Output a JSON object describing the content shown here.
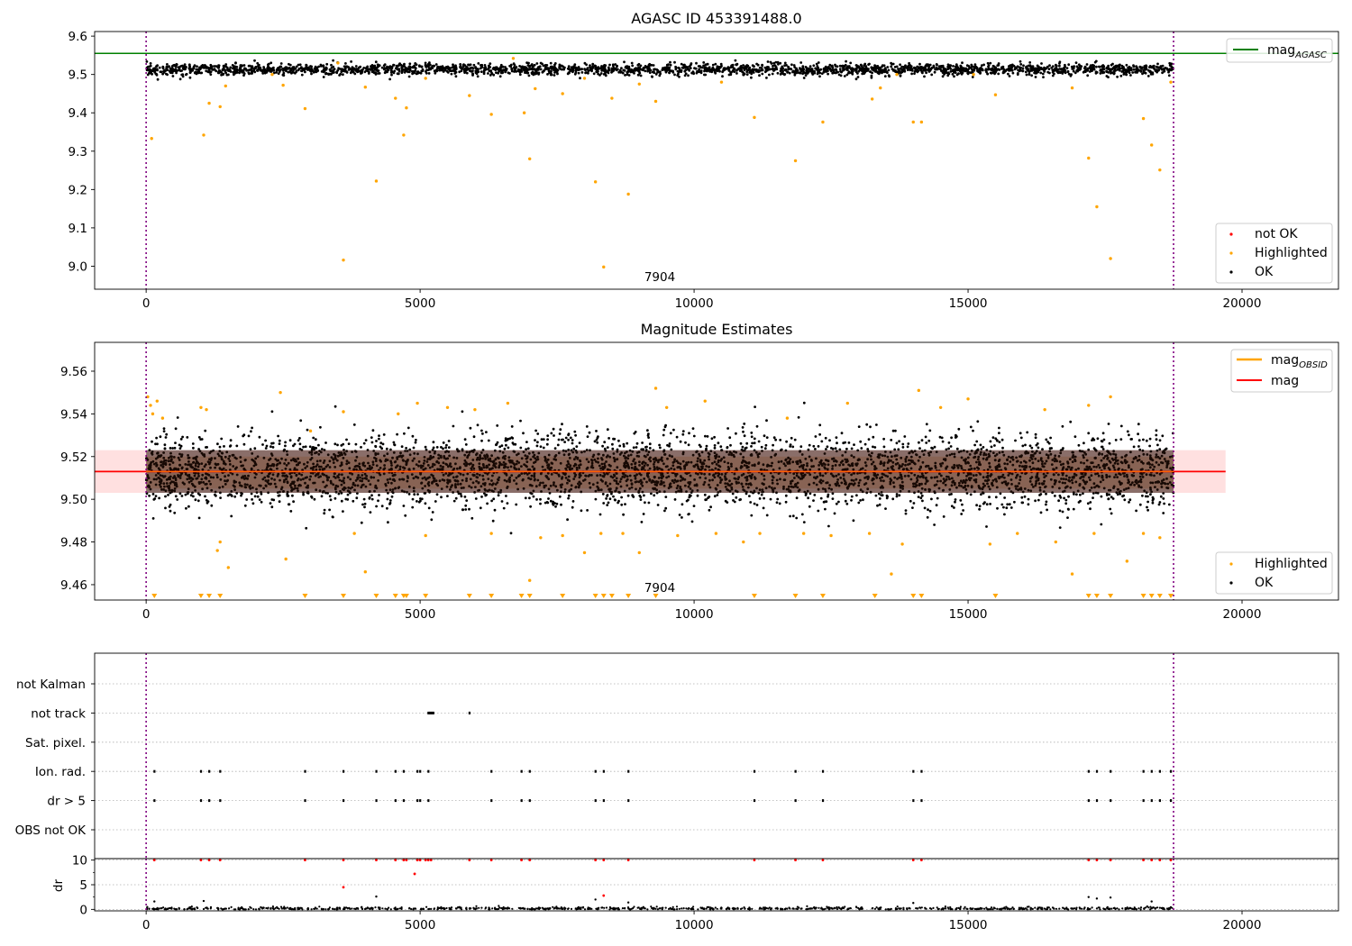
{
  "chart_data": [
    {
      "type": "scatter",
      "title": "AGASC ID 453391488.0",
      "xlim": [
        -940,
        21760
      ],
      "ylim": [
        8.94,
        9.612
      ],
      "xticks": [
        0,
        5000,
        10000,
        15000,
        20000
      ],
      "yticks": [
        9.0,
        9.1,
        9.2,
        9.3,
        9.4,
        9.5,
        9.6
      ],
      "annotation": "7904",
      "obs_bounds": [
        0,
        18750
      ],
      "reference_line": {
        "name": "mag_AGASC",
        "y": 9.555,
        "color": "#008000"
      },
      "series": [
        {
          "name": "not OK",
          "color": "#ff0000",
          "points": []
        },
        {
          "name": "Highlighted",
          "color": "#ffa500",
          "points": [
            [
              100,
              9.333
            ],
            [
              1050,
              9.342
            ],
            [
              1150,
              9.425
            ],
            [
              1350,
              9.416
            ],
            [
              1450,
              9.47
            ],
            [
              2300,
              9.5
            ],
            [
              2500,
              9.472
            ],
            [
              2900,
              9.411
            ],
            [
              3500,
              9.53
            ],
            [
              3600,
              9.016
            ],
            [
              4000,
              9.467
            ],
            [
              4200,
              9.222
            ],
            [
              4550,
              9.438
            ],
            [
              4700,
              9.342
            ],
            [
              4750,
              9.413
            ],
            [
              5100,
              9.49
            ],
            [
              5900,
              9.445
            ],
            [
              6300,
              9.396
            ],
            [
              6700,
              9.542
            ],
            [
              6900,
              9.4
            ],
            [
              7000,
              9.28
            ],
            [
              7100,
              9.463
            ],
            [
              7600,
              9.45
            ],
            [
              8000,
              9.49
            ],
            [
              8200,
              9.22
            ],
            [
              8350,
              8.998
            ],
            [
              8500,
              9.438
            ],
            [
              8800,
              9.188
            ],
            [
              9000,
              9.475
            ],
            [
              9300,
              9.43
            ],
            [
              10500,
              9.48
            ],
            [
              11100,
              9.388
            ],
            [
              11850,
              9.275
            ],
            [
              12350,
              9.376
            ],
            [
              13250,
              9.436
            ],
            [
              13400,
              9.465
            ],
            [
              13700,
              9.5
            ],
            [
              14000,
              9.376
            ],
            [
              14150,
              9.376
            ],
            [
              15100,
              9.5
            ],
            [
              15500,
              9.447
            ],
            [
              16900,
              9.465
            ],
            [
              17200,
              9.282
            ],
            [
              17350,
              9.155
            ],
            [
              17600,
              9.02
            ],
            [
              18200,
              9.385
            ],
            [
              18350,
              9.316
            ],
            [
              18500,
              9.251
            ],
            [
              18700,
              9.48
            ]
          ]
        },
        {
          "name": "OK",
          "color": "#000000",
          "points": []
        }
      ]
    },
    {
      "type": "scatter",
      "title": "Magnitude Estimates",
      "xlim": [
        -940,
        21760
      ],
      "ylim": [
        9.4528,
        9.5735
      ],
      "xticks": [
        0,
        5000,
        10000,
        15000,
        20000
      ],
      "yticks": [
        9.46,
        9.48,
        9.5,
        9.52,
        9.54,
        9.56
      ],
      "annotation": "7904",
      "obs_bounds": [
        0,
        18750
      ],
      "reference_lines": [
        {
          "name": "mag_OBSID",
          "y": 9.513,
          "color": "#ffa500"
        },
        {
          "name": "mag",
          "y": 9.513,
          "color": "#ff0000"
        }
      ],
      "mag_band": [
        9.503,
        9.523
      ],
      "series": [
        {
          "name": "Highlighted",
          "color": "#ffa500",
          "points": [
            [
              30,
              9.548
            ],
            [
              80,
              9.544
            ],
            [
              120,
              9.54
            ],
            [
              200,
              9.546
            ],
            [
              300,
              9.538
            ],
            [
              1000,
              9.543
            ],
            [
              1100,
              9.542
            ],
            [
              1350,
              9.48
            ],
            [
              1300,
              9.476
            ],
            [
              1500,
              9.468
            ],
            [
              2450,
              9.55
            ],
            [
              2550,
              9.472
            ],
            [
              3000,
              9.532
            ],
            [
              3600,
              9.541
            ],
            [
              3800,
              9.484
            ],
            [
              4000,
              9.466
            ],
            [
              4600,
              9.54
            ],
            [
              4950,
              9.545
            ],
            [
              5100,
              9.483
            ],
            [
              5500,
              9.543
            ],
            [
              6000,
              9.542
            ],
            [
              6300,
              9.484
            ],
            [
              6600,
              9.545
            ],
            [
              7000,
              9.462
            ],
            [
              7200,
              9.482
            ],
            [
              7600,
              9.483
            ],
            [
              8000,
              9.475
            ],
            [
              8300,
              9.484
            ],
            [
              8700,
              9.484
            ],
            [
              9000,
              9.475
            ],
            [
              9300,
              9.552
            ],
            [
              9500,
              9.543
            ],
            [
              9700,
              9.483
            ],
            [
              10200,
              9.546
            ],
            [
              10400,
              9.484
            ],
            [
              10900,
              9.48
            ],
            [
              11200,
              9.484
            ],
            [
              11700,
              9.538
            ],
            [
              12000,
              9.484
            ],
            [
              12500,
              9.483
            ],
            [
              12800,
              9.545
            ],
            [
              13200,
              9.484
            ],
            [
              13600,
              9.465
            ],
            [
              13800,
              9.479
            ],
            [
              14100,
              9.551
            ],
            [
              14500,
              9.543
            ],
            [
              15000,
              9.547
            ],
            [
              15400,
              9.479
            ],
            [
              15900,
              9.484
            ],
            [
              16400,
              9.542
            ],
            [
              16600,
              9.48
            ],
            [
              16900,
              9.465
            ],
            [
              17200,
              9.544
            ],
            [
              17300,
              9.484
            ],
            [
              17600,
              9.548
            ],
            [
              17900,
              9.471
            ],
            [
              18200,
              9.484
            ],
            [
              18500,
              9.482
            ]
          ]
        },
        {
          "name": "OK",
          "color": "#000000",
          "points": []
        }
      ],
      "below_range_markers": [
        150,
        1000,
        1150,
        1350,
        2900,
        3600,
        4200,
        4550,
        4700,
        4750,
        5100,
        5900,
        6300,
        6850,
        7000,
        7600,
        8200,
        8350,
        8500,
        8800,
        9300,
        11100,
        11850,
        12350,
        13300,
        14000,
        14150,
        15500,
        17200,
        17350,
        17600,
        18200,
        18350,
        18500,
        18700
      ]
    },
    {
      "type": "scatter",
      "title": "",
      "xlim": [
        -940,
        21760
      ],
      "xticks": [
        0,
        5000,
        10000,
        15000,
        20000
      ],
      "obs_bounds": [
        0,
        18750
      ],
      "flag_rows": [
        "not Kalman",
        "not track",
        "Sat. pixel.",
        "Ion. rad.",
        "dr > 5",
        "OBS not OK"
      ],
      "flag_events": {
        "not Kalman": [],
        "not track": [
          5150,
          5180,
          5210,
          5240,
          5900
        ],
        "Sat. pixel.": [],
        "Ion. rad.": [
          150,
          1000,
          1150,
          1350,
          2900,
          3600,
          4200,
          4550,
          4700,
          4950,
          5000,
          5150,
          6300,
          6850,
          7000,
          8200,
          8350,
          8800,
          11100,
          11850,
          12350,
          14000,
          14150,
          17200,
          17350,
          17600,
          18200,
          18350,
          18500,
          18700
        ],
        "dr > 5": [
          150,
          1000,
          1150,
          1350,
          2900,
          3600,
          4200,
          4550,
          4700,
          4950,
          5000,
          5150,
          6300,
          6850,
          7000,
          8200,
          8350,
          8800,
          11100,
          11850,
          12350,
          14000,
          14150,
          17200,
          17350,
          17600,
          18200,
          18350,
          18500,
          18700
        ],
        "OBS not OK": []
      },
      "dr_panel": {
        "ylabel": "dr",
        "ylim": [
          -0.3,
          10.3
        ],
        "yticks": [
          0,
          5,
          10
        ],
        "red_points": [
          [
            150,
            10
          ],
          [
            1000,
            10
          ],
          [
            1150,
            10
          ],
          [
            1350,
            10
          ],
          [
            2900,
            10
          ],
          [
            3600,
            10
          ],
          [
            3600,
            4.5
          ],
          [
            4200,
            10
          ],
          [
            4550,
            10
          ],
          [
            4700,
            10
          ],
          [
            4750,
            10
          ],
          [
            4900,
            7.2
          ],
          [
            4950,
            10
          ],
          [
            5000,
            10
          ],
          [
            5100,
            10
          ],
          [
            5150,
            10
          ],
          [
            5200,
            10
          ],
          [
            5900,
            10
          ],
          [
            6300,
            10
          ],
          [
            6850,
            10
          ],
          [
            7000,
            10
          ],
          [
            8200,
            10
          ],
          [
            8350,
            10
          ],
          [
            8350,
            2.8
          ],
          [
            8800,
            10
          ],
          [
            11100,
            10
          ],
          [
            11850,
            10
          ],
          [
            12350,
            10
          ],
          [
            14000,
            10
          ],
          [
            14150,
            10
          ],
          [
            17200,
            10
          ],
          [
            17350,
            10
          ],
          [
            17600,
            10
          ],
          [
            18200,
            10
          ],
          [
            18350,
            10
          ],
          [
            18500,
            10
          ],
          [
            18700,
            10
          ]
        ],
        "black_points": [
          [
            150,
            1.6
          ],
          [
            1050,
            1.7
          ],
          [
            4200,
            2.6
          ],
          [
            8200,
            2.0
          ],
          [
            8800,
            1.4
          ],
          [
            14000,
            1.3
          ],
          [
            17200,
            2.5
          ],
          [
            17350,
            2.2
          ],
          [
            17600,
            2.4
          ],
          [
            18350,
            1.6
          ]
        ]
      }
    }
  ]
}
